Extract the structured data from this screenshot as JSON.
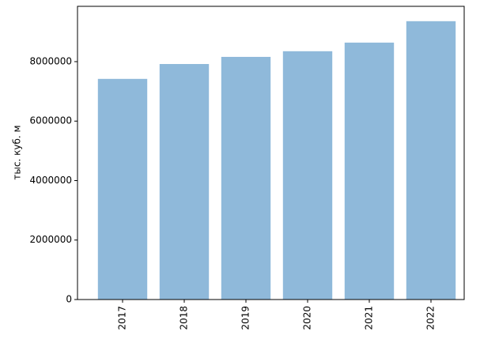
{
  "chart_data": {
    "type": "bar",
    "ylabel": "тыс. куб. м",
    "categories": [
      "2017",
      "2018",
      "2019",
      "2020",
      "2021",
      "2022"
    ],
    "values": [
      7420000,
      7920000,
      8160000,
      8350000,
      8640000,
      9360000
    ],
    "color": "#8fb9da",
    "ylim": [
      0,
      9860000
    ],
    "yticks": [
      0,
      2000000,
      4000000,
      6000000,
      8000000
    ]
  }
}
